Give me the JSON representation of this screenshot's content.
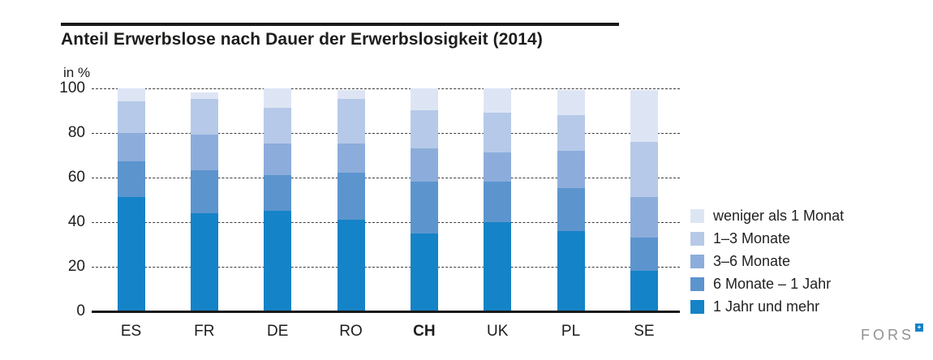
{
  "header": {
    "title": "Anteil Erwerbslose nach Dauer der Erwerbslosigkeit (2014)",
    "unit_label": "in %"
  },
  "footer": {
    "logo_text": "FORS",
    "logo_mark": "+",
    "logo_mark_color": "#1583c7"
  },
  "chart_data": {
    "type": "bar",
    "subtype": "stacked-vertical",
    "title": "Anteil Erwerbslose nach Dauer der Erwerbslosigkeit (2014)",
    "ylabel": "in %",
    "ylim": [
      0,
      100
    ],
    "y_ticks": [
      0,
      20,
      40,
      60,
      80,
      100
    ],
    "grid": "horizontal-dashed",
    "legend_position": "right",
    "legend_order": "reversed-stack",
    "categories": [
      "ES",
      "FR",
      "DE",
      "RO",
      "CH",
      "UK",
      "PL",
      "SE"
    ],
    "highlight_category": "CH",
    "series": [
      {
        "name": "1 Jahr und mehr",
        "color": "#1583c7",
        "values": [
          51,
          44,
          45,
          41,
          35,
          40,
          36,
          18
        ]
      },
      {
        "name": "6 Monate – 1 Jahr",
        "color": "#5c94ce",
        "values": [
          16,
          19,
          16,
          21,
          23,
          18,
          19,
          15
        ]
      },
      {
        "name": "3–6 Monate",
        "color": "#8caddb",
        "values": [
          13,
          16,
          14,
          13,
          15,
          13,
          17,
          18
        ]
      },
      {
        "name": "1–3 Monate",
        "color": "#b6c9e8",
        "values": [
          14,
          16,
          16,
          20,
          17,
          18,
          16,
          25
        ]
      },
      {
        "name": "weniger als 1 Monat",
        "color": "#dde5f4",
        "values": [
          6,
          3,
          9,
          4,
          10,
          11,
          11,
          23
        ]
      }
    ],
    "colors": {
      "axis": "#1a1a1a",
      "grid": "#3d3d3d",
      "text": "#1d1d1b"
    }
  }
}
